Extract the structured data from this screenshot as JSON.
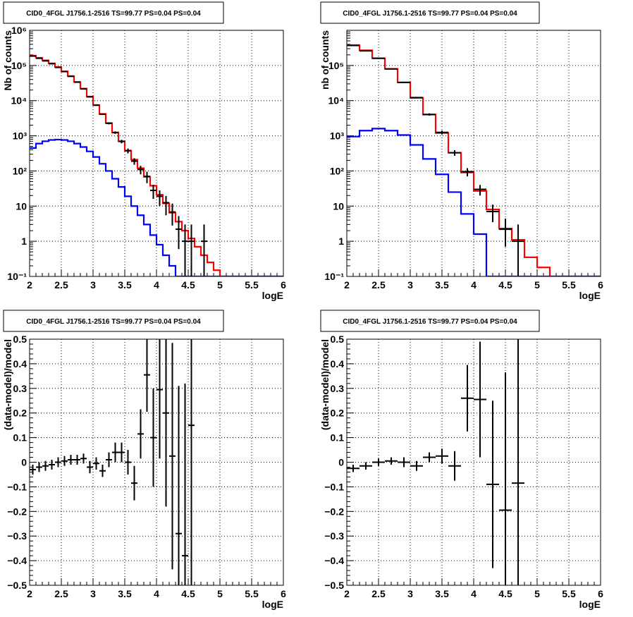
{
  "chart_data": [
    {
      "type": "line",
      "step": true,
      "title": "CID0_4FGL J1756.1-2516 TS=99.77 PS=0.04 PS=0.04",
      "xlabel": "logE",
      "ylabel": "Nb of counts",
      "xlim": [
        2,
        6
      ],
      "ylim": [
        0.1,
        1000000
      ],
      "yscale": "log",
      "x_ticks": [
        "2",
        "2.5",
        "3",
        "3.5",
        "4",
        "4.5",
        "5",
        "5.5",
        "6"
      ],
      "y_ticks": [
        "10⁻¹",
        "1",
        "10",
        "10²",
        "10³",
        "10⁴",
        "10⁵",
        "10⁶"
      ],
      "grid": true,
      "bin_edges": [
        2.0,
        2.1,
        2.2,
        2.3,
        2.4,
        2.5,
        2.6,
        2.7,
        2.8,
        2.9,
        3.0,
        3.1,
        3.2,
        3.3,
        3.4,
        3.5,
        3.6,
        3.7,
        3.8,
        3.9,
        4.0,
        4.1,
        4.2,
        4.3,
        4.4,
        4.5,
        4.6,
        4.7,
        4.8,
        4.9,
        5.0,
        5.1,
        5.2,
        5.3,
        5.4,
        5.5,
        5.6,
        5.7,
        5.8,
        5.9,
        6.0
      ],
      "series": [
        {
          "color": "#ff0000",
          "values": [
            190000,
            165000,
            140000,
            115000,
            90000,
            68000,
            50000,
            34000,
            22000,
            13000,
            7500,
            4200,
            2300,
            1250,
            700,
            380,
            210,
            120,
            68,
            38,
            21,
            12,
            6.5,
            3.6,
            2,
            1.2,
            0.7,
            0.4,
            0.25,
            0.15,
            0.1,
            0.1,
            0.1,
            0.1,
            0.1,
            0.1,
            0.1,
            0.1,
            0.1,
            0.1
          ]
        },
        {
          "color": "#0000ff",
          "values": [
            450,
            600,
            700,
            760,
            780,
            760,
            700,
            600,
            480,
            360,
            250,
            160,
            100,
            60,
            35,
            19,
            10,
            5.5,
            3,
            1.5,
            0.8,
            0.4,
            0.2,
            0.1,
            0.1,
            0.1,
            0.1,
            0.1,
            0.1,
            0.1,
            0.1,
            0.1,
            0.1,
            0.1,
            0.1,
            0.1,
            0.1,
            0.1,
            0.1,
            0.1
          ]
        },
        {
          "marker": "cross",
          "color": "#000000",
          "x": [
            2.05,
            2.15,
            2.25,
            2.35,
            2.45,
            2.55,
            2.65,
            2.75,
            2.85,
            2.95,
            3.05,
            3.15,
            3.25,
            3.35,
            3.45,
            3.55,
            3.65,
            3.75,
            3.85,
            3.95,
            4.05,
            4.15,
            4.25,
            4.35,
            4.45,
            4.55,
            4.75
          ],
          "values": [
            185000,
            160000,
            135000,
            112000,
            88000,
            67000,
            49000,
            33500,
            21500,
            12800,
            7400,
            4100,
            2260,
            1230,
            690,
            375,
            190,
            110,
            70,
            28,
            19,
            12.5,
            6.8,
            2.2,
            1,
            1,
            1
          ],
          "err_low": [
            2000,
            2000,
            2000,
            2000,
            2000,
            1500,
            1000,
            800,
            600,
            400,
            300,
            200,
            150,
            100,
            80,
            60,
            40,
            30,
            25,
            12,
            9,
            7,
            4,
            1.6,
            0.9,
            0.9,
            0.9
          ],
          "err_high": [
            2000,
            2000,
            2000,
            2000,
            2000,
            1500,
            1000,
            800,
            600,
            400,
            300,
            200,
            150,
            100,
            80,
            60,
            40,
            30,
            25,
            12,
            9,
            7,
            5,
            3,
            2,
            2,
            2
          ]
        }
      ]
    },
    {
      "type": "line",
      "step": true,
      "title": "CID0_4FGL J1756.1-2516 TS=99.77 PS=0.04 PS=0.04",
      "xlabel": "logE",
      "ylabel": "nb of counts",
      "xlim": [
        2,
        6
      ],
      "ylim": [
        0.1,
        1000000
      ],
      "yscale": "log",
      "x_ticks": [
        "2",
        "2.5",
        "3",
        "3.5",
        "4",
        "4.5",
        "5",
        "5.5",
        "6"
      ],
      "y_ticks": [
        "10⁻¹",
        "1",
        "10",
        "10²",
        "10³",
        "10⁴",
        "10⁵"
      ],
      "grid": true,
      "bin_edges": [
        2.0,
        2.2,
        2.4,
        2.6,
        2.8,
        3.0,
        3.2,
        3.4,
        3.6,
        3.8,
        4.0,
        4.2,
        4.4,
        4.6,
        4.8,
        5.0,
        5.2,
        5.4,
        5.6,
        5.8,
        6.0
      ],
      "series": [
        {
          "color": "#ff0000",
          "values": [
            380000,
            270000,
            160000,
            80000,
            33000,
            12000,
            4000,
            1200,
            330,
            90,
            27,
            8,
            2.3,
            1.1,
            0.35,
            0.18,
            0.1,
            0.1,
            0.1,
            0.1
          ]
        },
        {
          "color": "#0000ff",
          "values": [
            950,
            1400,
            1600,
            1400,
            1050,
            550,
            220,
            80,
            25,
            6,
            1.6,
            0.1,
            0.1,
            0.1,
            0.1,
            0.1,
            0.1,
            0.1,
            0.1,
            0.1
          ]
        },
        {
          "marker": "cross",
          "color": "#000000",
          "x": [
            2.1,
            2.3,
            2.5,
            2.7,
            2.9,
            3.1,
            3.3,
            3.5,
            3.7,
            3.9,
            4.1,
            4.3,
            4.5,
            4.7
          ],
          "values": [
            370000,
            260000,
            160000,
            80000,
            33000,
            12200,
            4050,
            1250,
            330,
            95,
            30,
            7,
            2.2,
            1
          ],
          "err_low": [
            3000,
            2500,
            2000,
            1500,
            900,
            500,
            300,
            150,
            60,
            25,
            10,
            3.5,
            1.5,
            0.9
          ],
          "err_high": [
            3000,
            2500,
            2000,
            1500,
            900,
            500,
            300,
            150,
            60,
            25,
            10,
            4,
            2.2,
            2
          ]
        }
      ]
    },
    {
      "type": "scatter",
      "title": "CID0_4FGL J1756.1-2516 TS=99.77 PS=0.04 PS=0.04",
      "xlabel": "logE",
      "ylabel": "(data-model)/model",
      "xlim": [
        2,
        6
      ],
      "ylim": [
        -0.5,
        0.5
      ],
      "x_ticks": [
        "2",
        "2.5",
        "3",
        "3.5",
        "4",
        "4.5",
        "5",
        "5.5",
        "6"
      ],
      "y_ticks": [
        "−0.5",
        "−0.4",
        "−0.3",
        "−0.2",
        "−0.1",
        "0",
        "0.1",
        "0.2",
        "0.3",
        "0.4",
        "0.5"
      ],
      "grid": true,
      "x_halfwidth": 0.05,
      "series": [
        {
          "marker": "cross",
          "color": "#000000",
          "x": [
            2.05,
            2.15,
            2.25,
            2.35,
            2.45,
            2.55,
            2.65,
            2.75,
            2.85,
            2.95,
            3.05,
            3.15,
            3.25,
            3.35,
            3.45,
            3.55,
            3.65,
            3.75,
            3.85,
            3.95,
            4.05,
            4.15,
            4.25,
            4.35,
            4.45,
            4.55
          ],
          "values": [
            -0.03,
            -0.02,
            -0.015,
            -0.01,
            0.0,
            0.005,
            0.01,
            0.01,
            0.015,
            -0.02,
            -0.005,
            -0.035,
            0.01,
            0.04,
            0.04,
            0.0,
            -0.085,
            0.115,
            0.355,
            0.1,
            0.295,
            0.2,
            0.025,
            -0.29,
            -0.38,
            0.15
          ],
          "err": [
            0.02,
            0.02,
            0.02,
            0.02,
            0.02,
            0.02,
            0.02,
            0.02,
            0.02,
            0.025,
            0.025,
            0.025,
            0.03,
            0.04,
            0.04,
            0.05,
            0.07,
            0.1,
            0.15,
            0.2,
            0.28,
            0.38,
            0.46,
            0.6,
            0.7,
            0.85
          ]
        }
      ]
    },
    {
      "type": "scatter",
      "title": "CID0_4FGL J1756.1-2516 TS=99.77 PS=0.04 PS=0.04",
      "xlabel": "logE",
      "ylabel": "(data-model)/model",
      "xlim": [
        2,
        6
      ],
      "ylim": [
        -0.5,
        0.5
      ],
      "x_ticks": [
        "2",
        "2.5",
        "3",
        "3.5",
        "4",
        "4.5",
        "5",
        "5.5",
        "6"
      ],
      "y_ticks": [
        "−0.5",
        "−0.4",
        "−0.3",
        "−0.2",
        "−0.1",
        "0",
        "0.1",
        "0.2",
        "0.3",
        "0.4",
        "0.5"
      ],
      "grid": true,
      "x_halfwidth": 0.1,
      "series": [
        {
          "marker": "cross",
          "color": "#000000",
          "x": [
            2.1,
            2.3,
            2.5,
            2.7,
            2.9,
            3.1,
            3.3,
            3.5,
            3.7,
            3.9,
            4.1,
            4.3,
            4.5,
            4.7
          ],
          "values": [
            -0.025,
            -0.015,
            0.0,
            0.005,
            0.0,
            -0.015,
            0.02,
            0.025,
            -0.015,
            0.26,
            0.255,
            -0.09,
            -0.195,
            -0.085
          ],
          "err": [
            0.015,
            0.015,
            0.015,
            0.015,
            0.02,
            0.02,
            0.02,
            0.03,
            0.06,
            0.135,
            0.235,
            0.34,
            0.56,
            0.9
          ]
        }
      ]
    }
  ]
}
